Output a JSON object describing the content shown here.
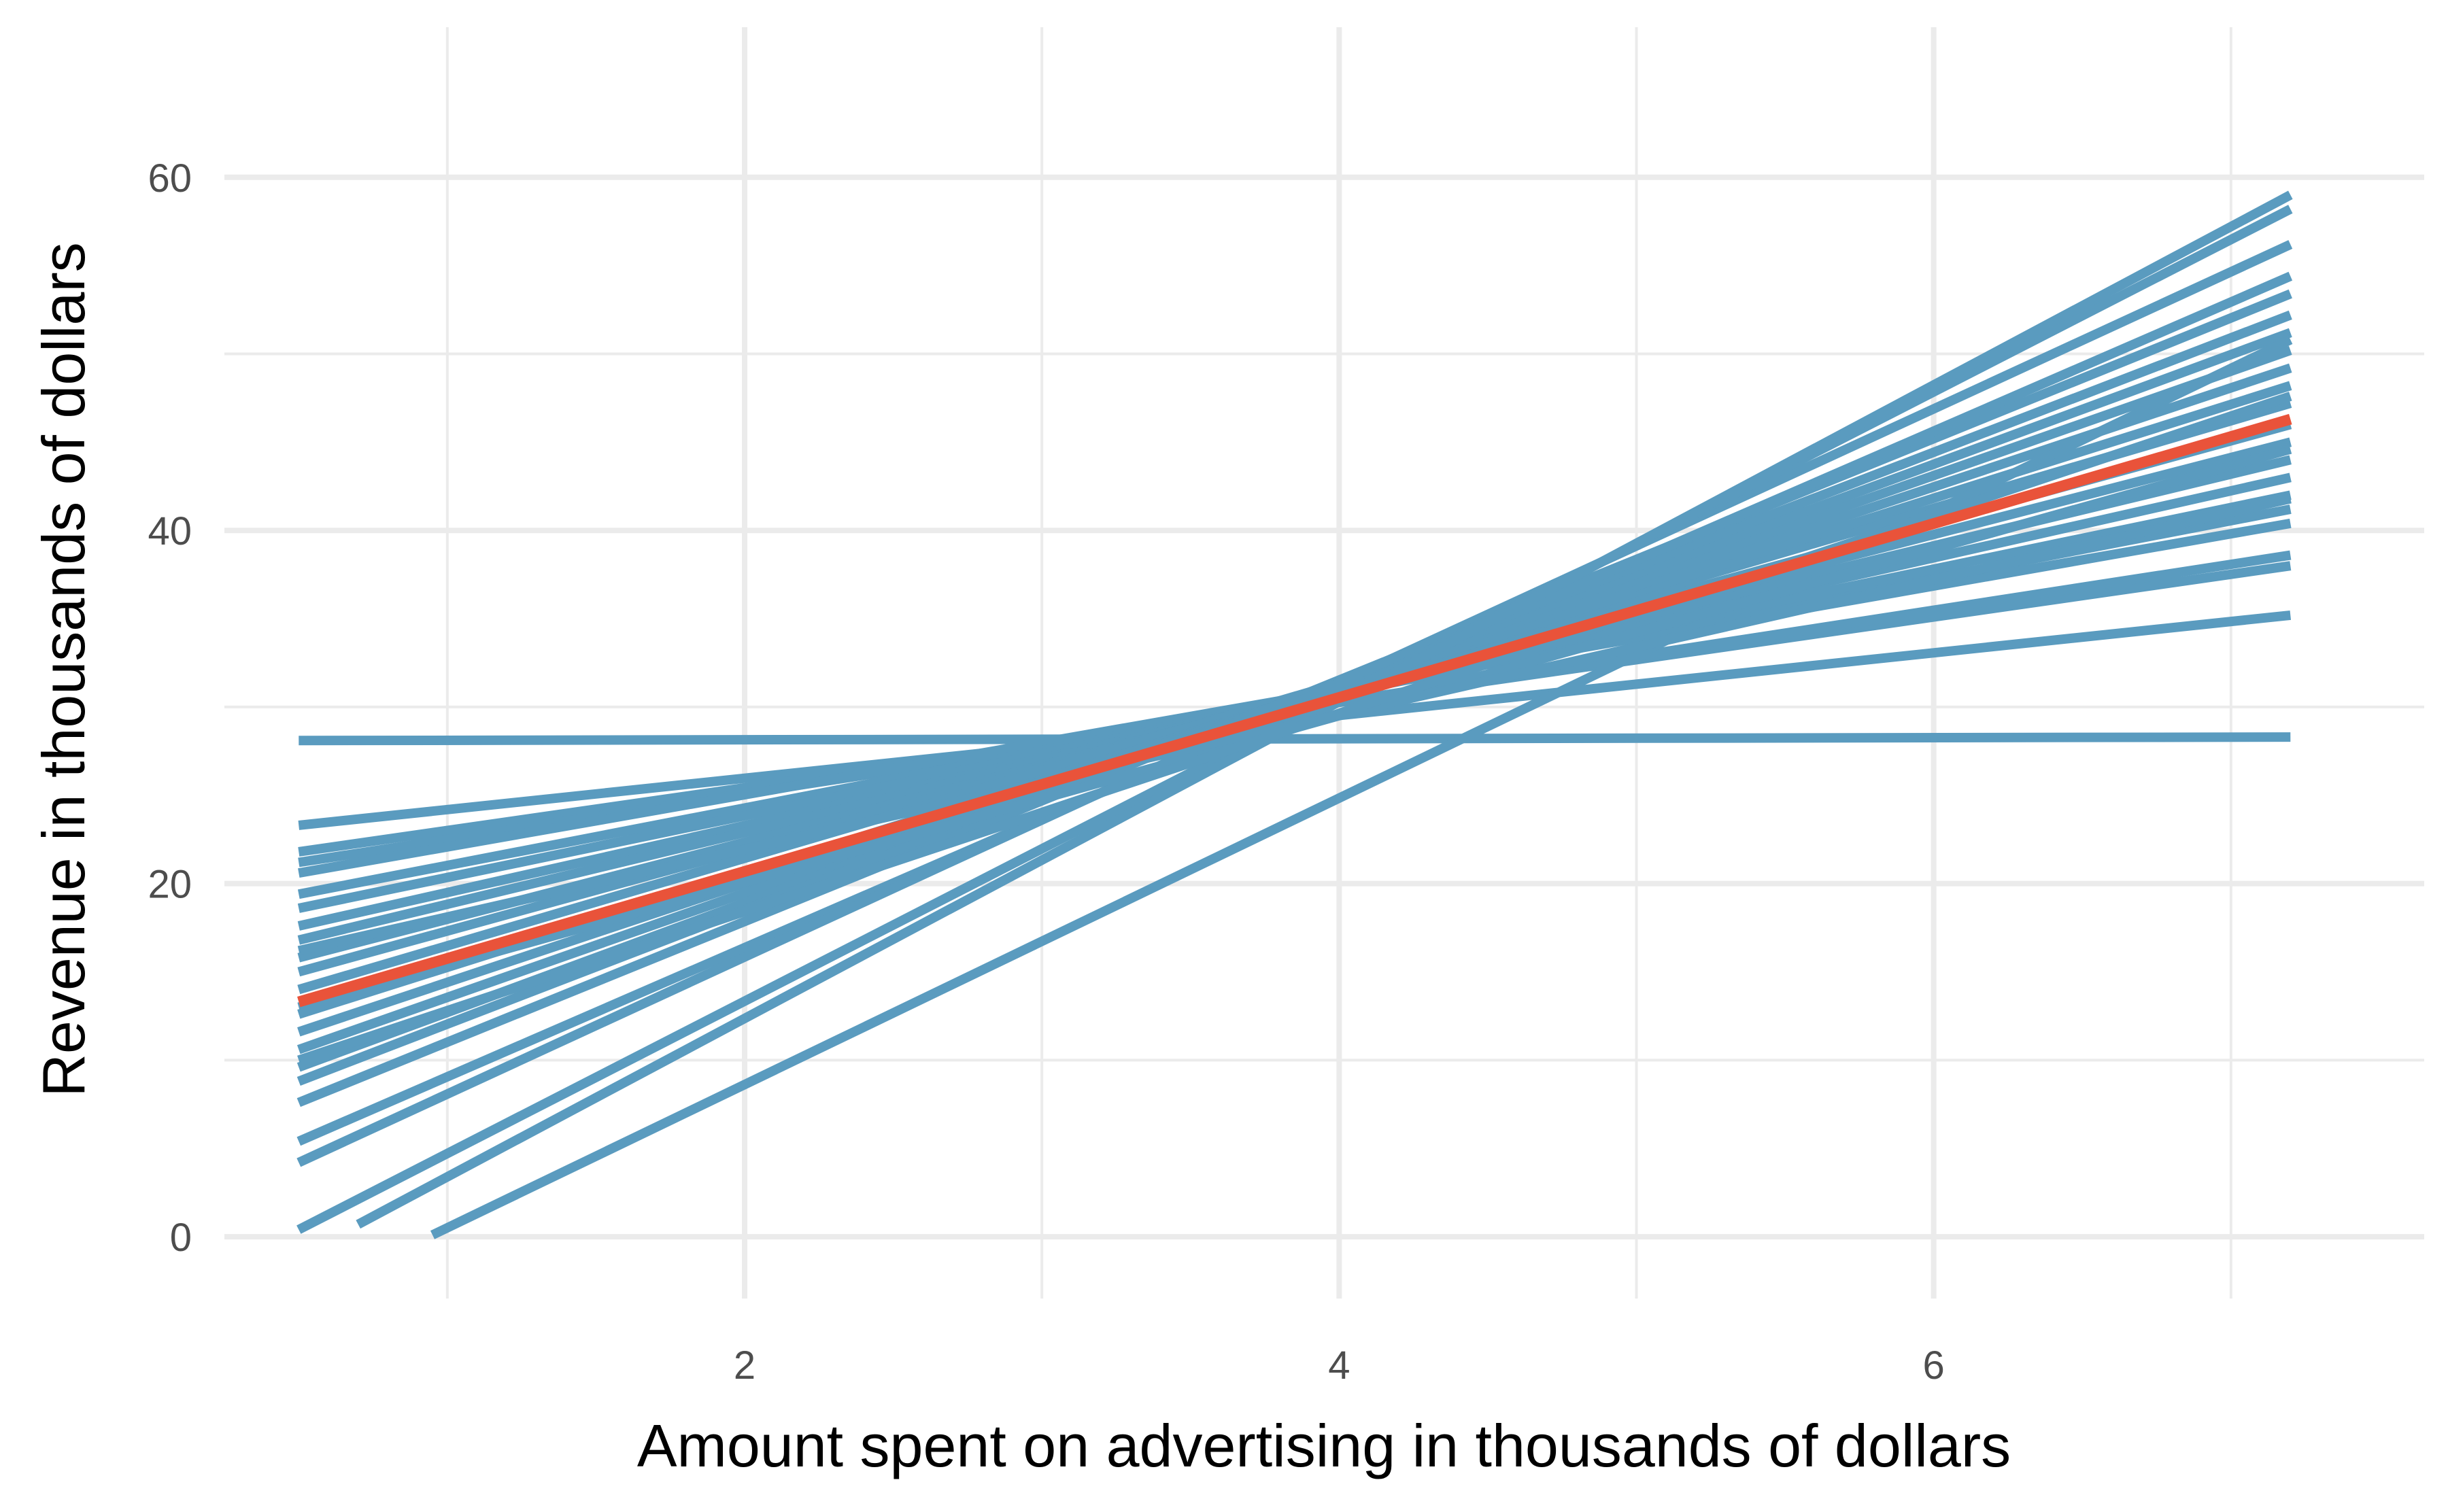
{
  "chart_data": {
    "type": "line",
    "title": "",
    "xlabel": "Amount spent on advertising in thousands of dollars",
    "ylabel": "Revenue in thousands of dollars",
    "xlim": [
      0.25,
      7.65
    ],
    "ylim": [
      -3.5,
      68.5
    ],
    "x_ticks": [
      2,
      4,
      6
    ],
    "x_tick_labels": [
      "2",
      "4",
      "6"
    ],
    "y_ticks": [
      0,
      20,
      40,
      60
    ],
    "y_tick_labels": [
      "0",
      "20",
      "40",
      "60"
    ],
    "x_minor_ticks": [
      1,
      3,
      5,
      7
    ],
    "y_minor_ticks": [
      10,
      30,
      50
    ],
    "grid": true,
    "legend": "none",
    "colors": {
      "sample_lines": "#5a9bbf",
      "population_line": "#e9533a",
      "grid": "#ebebeb"
    },
    "series": [
      {
        "role": "sample",
        "x": [
          0.5,
          7.2
        ],
        "y": [
          28.1,
          28.3
        ]
      },
      {
        "role": "sample",
        "x": [
          0.5,
          7.2
        ],
        "y": [
          23.3,
          35.2
        ]
      },
      {
        "role": "sample",
        "x": [
          0.5,
          7.2
        ],
        "y": [
          21.8,
          38.0
        ]
      },
      {
        "role": "sample",
        "x": [
          0.5,
          7.2
        ],
        "y": [
          21.2,
          38.6
        ]
      },
      {
        "role": "sample",
        "x": [
          0.5,
          7.2
        ],
        "y": [
          20.6,
          40.4
        ]
      },
      {
        "role": "sample",
        "x": [
          0.5,
          7.2
        ],
        "y": [
          19.4,
          41.2
        ]
      },
      {
        "role": "sample",
        "x": [
          0.5,
          7.2
        ],
        "y": [
          18.6,
          42.0
        ]
      },
      {
        "role": "sample",
        "x": [
          0.5,
          7.2
        ],
        "y": [
          17.6,
          43.0
        ]
      },
      {
        "role": "sample",
        "x": [
          0.5,
          7.2
        ],
        "y": [
          16.8,
          44.0
        ]
      },
      {
        "role": "sample",
        "x": [
          0.5,
          7.2
        ],
        "y": [
          15.8,
          45.0
        ]
      },
      {
        "role": "sample",
        "x": [
          0.5,
          7.2
        ],
        "y": [
          15.0,
          46.0
        ]
      },
      {
        "role": "sample",
        "x": [
          0.5,
          7.2
        ],
        "y": [
          14.0,
          47.2
        ]
      },
      {
        "role": "sample",
        "x": [
          0.5,
          7.2
        ],
        "y": [
          12.6,
          48.2
        ]
      },
      {
        "role": "sample",
        "x": [
          0.5,
          7.2
        ],
        "y": [
          11.6,
          49.2
        ]
      },
      {
        "role": "sample",
        "x": [
          0.5,
          7.2
        ],
        "y": [
          10.6,
          50.2
        ]
      },
      {
        "role": "sample",
        "x": [
          0.5,
          7.2
        ],
        "y": [
          9.6,
          51.2
        ]
      },
      {
        "role": "sample",
        "x": [
          0.5,
          7.2
        ],
        "y": [
          8.8,
          52.2
        ]
      },
      {
        "role": "sample",
        "x": [
          0.5,
          7.2
        ],
        "y": [
          7.6,
          53.4
        ]
      },
      {
        "role": "sample",
        "x": [
          0.5,
          7.2
        ],
        "y": [
          5.4,
          54.4
        ]
      },
      {
        "role": "sample",
        "x": [
          0.5,
          7.2
        ],
        "y": [
          4.2,
          56.2
        ]
      },
      {
        "role": "sample",
        "x": [
          0.5,
          7.2
        ],
        "y": [
          0.4,
          58.2
        ]
      },
      {
        "role": "sample",
        "x": [
          0.7,
          7.2
        ],
        "y": [
          0.7,
          59.0
        ]
      },
      {
        "role": "sample",
        "x": [
          0.95,
          7.2
        ],
        "y": [
          0.1,
          50.8
        ]
      },
      {
        "role": "sample",
        "x": [
          0.5,
          7.2
        ],
        "y": [
          13.0,
          44.6
        ]
      },
      {
        "role": "sample",
        "x": [
          0.5,
          7.2
        ],
        "y": [
          16.2,
          41.8
        ]
      },
      {
        "role": "sample",
        "x": [
          0.5,
          7.2
        ],
        "y": [
          10.0,
          47.6
        ]
      },
      {
        "role": "population",
        "x": [
          0.5,
          7.2
        ],
        "y": [
          13.3,
          46.3
        ]
      }
    ]
  }
}
